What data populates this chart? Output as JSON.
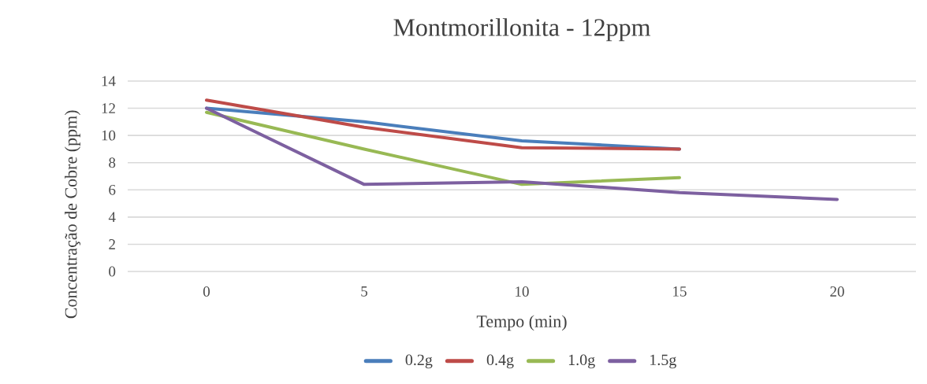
{
  "chart_data": {
    "type": "line",
    "title": "Montmorillonita - 12ppm",
    "xlabel": "Tempo (min)",
    "ylabel": "Concentração de Cobre (ppm)",
    "categories": [
      "0",
      "5",
      "10",
      "15",
      "20"
    ],
    "series": [
      {
        "name": "0.2g",
        "color": "#4a7ebb",
        "values": [
          12.0,
          11.0,
          9.6,
          9.0,
          null
        ]
      },
      {
        "name": "0.4g",
        "color": "#be4b48",
        "values": [
          12.6,
          10.6,
          9.1,
          9.0,
          null
        ]
      },
      {
        "name": "1.0g",
        "color": "#98b954",
        "values": [
          11.7,
          9.0,
          6.4,
          6.9,
          null
        ]
      },
      {
        "name": "1.5g",
        "color": "#7d60a0",
        "values": [
          12.0,
          6.4,
          6.6,
          5.8,
          5.3
        ]
      }
    ],
    "ylim": [
      0,
      14
    ],
    "yticks": [
      0,
      2,
      4,
      6,
      8,
      10,
      12,
      14
    ],
    "grid": "y",
    "legend": "bottom",
    "marker": "none",
    "line_style": "solid"
  }
}
